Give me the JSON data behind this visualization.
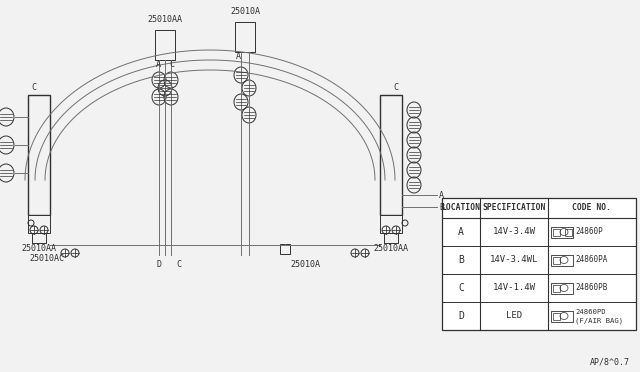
{
  "bg_color": "#f2f2f2",
  "line_color": "#707070",
  "dark_color": "#303030",
  "table_headers": [
    "LOCATION",
    "SPECIFICATION",
    "CODE NO."
  ],
  "table_rows": [
    [
      "A",
      "14V-3.4W",
      "24860P"
    ],
    [
      "B",
      "14V-3.4WL",
      "24860PA"
    ],
    [
      "C",
      "14V-1.4W",
      "24860PB"
    ],
    [
      "D",
      "LED",
      "24860PD\n(F/AIR BAG)"
    ]
  ],
  "watermark": "AP/8^0.7",
  "label_25010AA_left": "25010AA",
  "label_25010A_center": "25010A",
  "label_25010AA_right": "25010AA",
  "label_25010A_bottom": "25010A",
  "label_25010AA_bottom_left": "25010AA",
  "label_25010AC": "25010AC"
}
